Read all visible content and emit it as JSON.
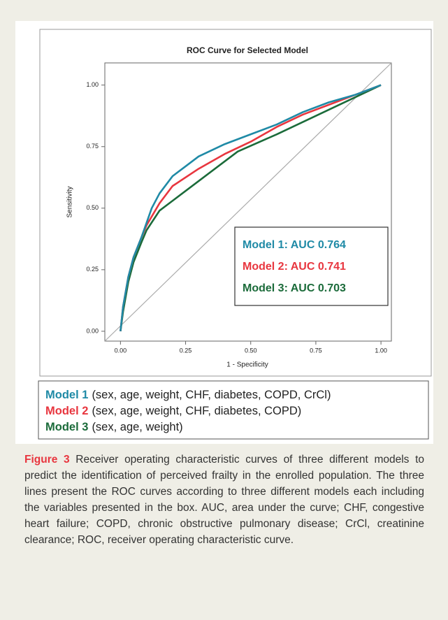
{
  "chart_data": {
    "type": "line",
    "title": "ROC Curve for Selected Model",
    "x_label": "1 - Specificity",
    "y_label": "Sensitivity",
    "xlim": [
      -0.06,
      1.04
    ],
    "ylim": [
      -0.04,
      1.09
    ],
    "xticks": [
      {
        "value": 0,
        "label": "0.00"
      },
      {
        "value": 0.25,
        "label": "0.25"
      },
      {
        "value": 0.5,
        "label": "0.50"
      },
      {
        "value": 0.75,
        "label": "0.75"
      },
      {
        "value": 1,
        "label": "1.00"
      }
    ],
    "yticks": [
      {
        "value": 0,
        "label": "0.00"
      },
      {
        "value": 0.25,
        "label": "0.25"
      },
      {
        "value": 0.5,
        "label": "0.50"
      },
      {
        "value": 0.75,
        "label": "0.75"
      },
      {
        "value": 1,
        "label": "1.00"
      }
    ],
    "grid": false,
    "series": [
      {
        "name": "Model 1: AUC 0.764",
        "color": "#1f8aa6",
        "x": [
          0,
          0.01,
          0.03,
          0.05,
          0.08,
          0.1,
          0.12,
          0.15,
          0.2,
          0.25,
          0.3,
          0.4,
          0.5,
          0.6,
          0.7,
          0.8,
          0.9,
          1
        ],
        "values": [
          0,
          0.1,
          0.22,
          0.3,
          0.38,
          0.44,
          0.5,
          0.56,
          0.63,
          0.67,
          0.71,
          0.76,
          0.8,
          0.84,
          0.89,
          0.93,
          0.96,
          1
        ]
      },
      {
        "name": "Model 2: AUC 0.741",
        "color": "#e8363f",
        "x": [
          0,
          0.01,
          0.03,
          0.05,
          0.08,
          0.1,
          0.15,
          0.2,
          0.3,
          0.4,
          0.5,
          0.6,
          0.7,
          0.8,
          0.9,
          1
        ],
        "values": [
          0,
          0.1,
          0.22,
          0.3,
          0.38,
          0.43,
          0.52,
          0.59,
          0.66,
          0.72,
          0.77,
          0.83,
          0.88,
          0.92,
          0.96,
          1
        ]
      },
      {
        "name": "Model 3: AUC 0.703",
        "color": "#1b6b3a",
        "x": [
          0,
          0.01,
          0.03,
          0.05,
          0.08,
          0.1,
          0.15,
          0.2,
          0.3,
          0.45,
          0.6,
          0.7,
          0.8,
          0.9,
          1
        ],
        "values": [
          0,
          0.08,
          0.2,
          0.28,
          0.36,
          0.41,
          0.49,
          0.53,
          0.61,
          0.73,
          0.8,
          0.85,
          0.9,
          0.95,
          1
        ]
      }
    ]
  },
  "models": [
    {
      "name": "Model 1",
      "variables": "(sex, age, weight, CHF, diabetes, COPD, CrCl)"
    },
    {
      "name": "Model 2",
      "variables": "(sex, age, weight, CHF, diabetes, COPD)"
    },
    {
      "name": "Model 3",
      "variables": "(sex, age, weight)"
    }
  ],
  "caption": {
    "label": "Figure 3",
    "text": "Receiver operating characteristic curves of three different models to predict the identification of perceived frailty in the enrolled population. The three lines present the ROC curves according to three different models each including the variables presented in the box. AUC, area under the curve; CHF, congestive heart failure; COPD, chronic obstructive pulmonary disease; CrCl, creatinine clearance; ROC, receiver operating characteristic curve."
  }
}
